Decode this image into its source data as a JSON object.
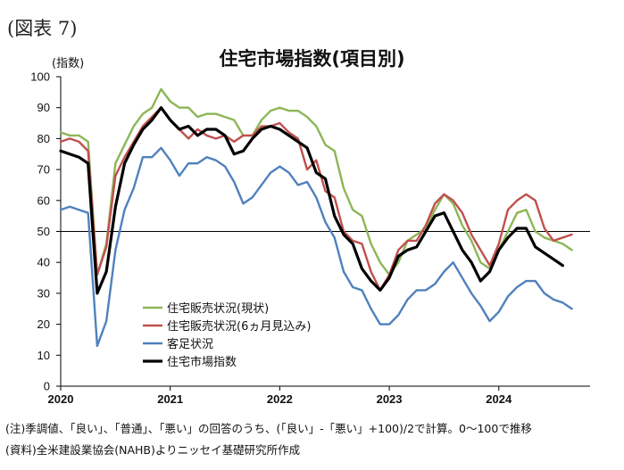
{
  "figure_label": "(図表 7)",
  "notes": {
    "line1": "(注)季調値、「良い」、「普通」、「悪い」の回答のうち、(「良い」-「悪い」+100)/2で計算。0～100で推移",
    "line2": "(資料)全米建設業協会(NAHB)よりニッセイ基礎研究所作成"
  },
  "chart_data": {
    "type": "line",
    "title": "住宅市場指数(項目別)",
    "ylabel": "(指数)",
    "xlabel": "",
    "ylim": [
      0,
      100
    ],
    "yticks": [
      0,
      10,
      20,
      30,
      40,
      50,
      60,
      70,
      80,
      90,
      100
    ],
    "xlim": [
      "2020-01",
      "2024-09"
    ],
    "xticks": [
      "2020",
      "2021",
      "2022",
      "2023",
      "2024"
    ],
    "reference_line": 50,
    "grid": false,
    "legend_position": "bottom-left",
    "x": [
      "2020-01",
      "2020-02",
      "2020-03",
      "2020-04",
      "2020-05",
      "2020-06",
      "2020-07",
      "2020-08",
      "2020-09",
      "2020-10",
      "2020-11",
      "2020-12",
      "2021-01",
      "2021-02",
      "2021-03",
      "2021-04",
      "2021-05",
      "2021-06",
      "2021-07",
      "2021-08",
      "2021-09",
      "2021-10",
      "2021-11",
      "2021-12",
      "2022-01",
      "2022-02",
      "2022-03",
      "2022-04",
      "2022-05",
      "2022-06",
      "2022-07",
      "2022-08",
      "2022-09",
      "2022-10",
      "2022-11",
      "2022-12",
      "2023-01",
      "2023-02",
      "2023-03",
      "2023-04",
      "2023-05",
      "2023-06",
      "2023-07",
      "2023-08",
      "2023-09",
      "2023-10",
      "2023-11",
      "2023-12",
      "2024-01",
      "2024-02",
      "2024-03",
      "2024-04",
      "2024-05",
      "2024-06",
      "2024-07",
      "2024-08",
      "2024-09"
    ],
    "series": [
      {
        "name": "住宅販売状況(現状)",
        "color": "#8db657",
        "values": [
          82,
          81,
          81,
          79,
          36,
          46,
          72,
          78,
          84,
          88,
          90,
          96,
          92,
          90,
          90,
          87,
          88,
          88,
          87,
          86,
          81,
          81,
          86,
          89,
          90,
          89,
          89,
          87,
          84,
          78,
          76,
          64,
          57,
          55,
          46,
          40,
          36,
          40,
          47,
          49,
          51,
          57,
          62,
          59,
          52,
          47,
          40,
          38,
          44,
          50,
          56,
          57,
          50,
          48,
          47,
          46,
          44
        ]
      },
      {
        "name": "住宅販売状況(6ヵ月見込み)",
        "color": "#c0504d",
        "values": [
          79,
          80,
          79,
          76,
          36,
          45,
          68,
          74,
          79,
          84,
          87,
          90,
          86,
          83,
          80,
          83,
          81,
          80,
          81,
          79,
          81,
          81,
          84,
          84,
          85,
          82,
          80,
          70,
          73,
          63,
          61,
          50,
          47,
          46,
          37,
          31,
          36,
          44,
          47,
          47,
          52,
          59,
          62,
          60,
          56,
          49,
          44,
          39,
          46,
          57,
          60,
          62,
          60,
          51,
          47,
          48,
          49
        ]
      },
      {
        "name": "客足状況",
        "color": "#4f81bd",
        "values": [
          57,
          58,
          57,
          56,
          13,
          21,
          44,
          57,
          64,
          74,
          74,
          77,
          73,
          68,
          72,
          72,
          74,
          73,
          71,
          66,
          59,
          61,
          65,
          69,
          71,
          69,
          65,
          66,
          61,
          53,
          48,
          37,
          32,
          31,
          25,
          20,
          20,
          23,
          28,
          31,
          31,
          33,
          37,
          40,
          35,
          30,
          26,
          21,
          24,
          29,
          32,
          34,
          34,
          30,
          28,
          27,
          25
        ]
      },
      {
        "name": "住宅市場指数",
        "color": "#000000",
        "values": [
          76,
          75,
          74,
          72,
          30,
          37,
          58,
          72,
          78,
          83,
          86,
          90,
          86,
          83,
          84,
          81,
          83,
          83,
          81,
          75,
          76,
          80,
          83,
          84,
          83,
          81,
          79,
          77,
          69,
          67,
          55,
          49,
          46,
          38,
          34,
          31,
          35,
          42,
          44,
          45,
          50,
          55,
          56,
          50,
          44,
          40,
          34,
          37,
          44,
          48,
          51,
          51,
          45,
          43,
          41,
          39,
          null
        ]
      }
    ]
  }
}
